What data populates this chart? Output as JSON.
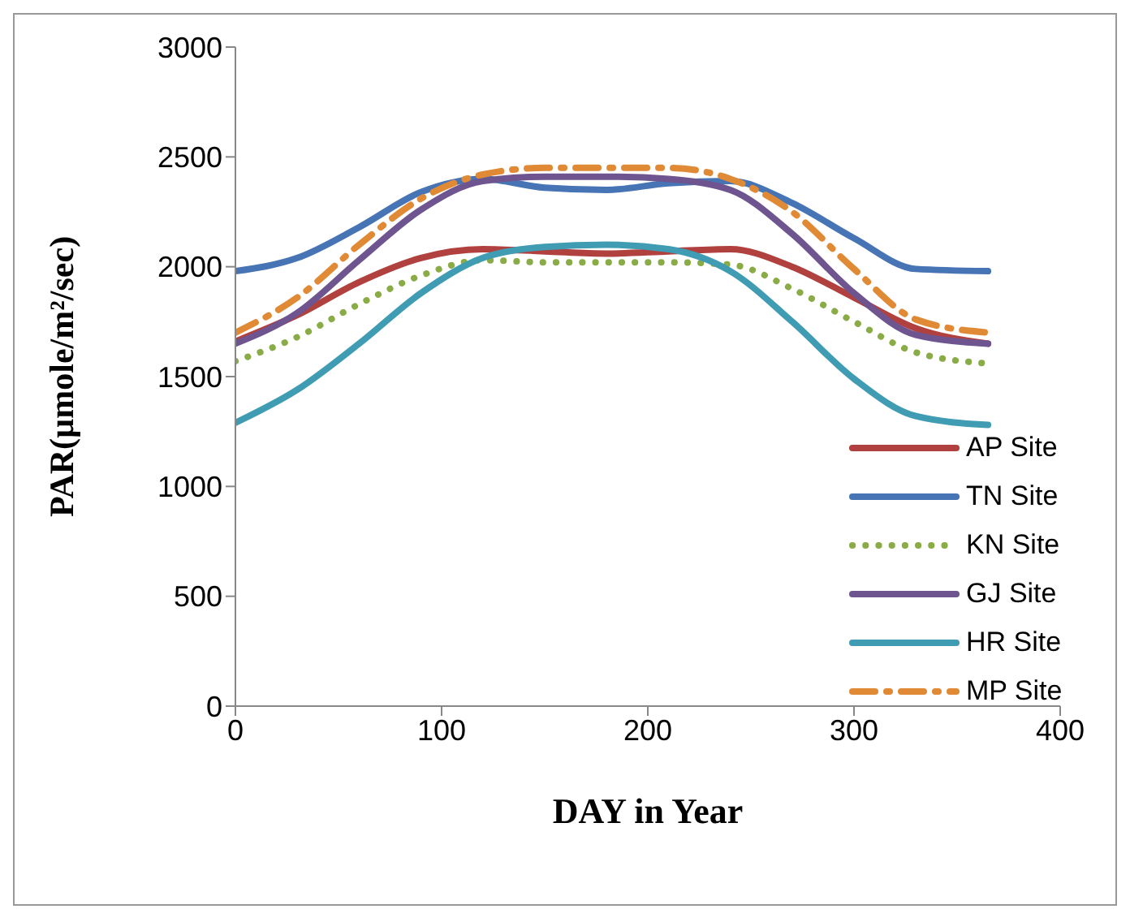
{
  "chart_data": {
    "type": "line",
    "xlabel": "DAY  in  Year",
    "ylabel": "PAR(µmole/m²/sec)",
    "x": [
      0,
      30,
      60,
      90,
      120,
      150,
      180,
      210,
      240,
      270,
      300,
      330,
      365
    ],
    "xlim": [
      0,
      400
    ],
    "xticks": [
      0,
      100,
      200,
      300,
      400
    ],
    "ylim": [
      0,
      3000
    ],
    "yticks": [
      0,
      500,
      1000,
      1500,
      2000,
      2500,
      3000
    ],
    "grid": false,
    "legend": "bottom right",
    "marker": "none",
    "series": [
      {
        "name": "AP Site",
        "color": "#b0413e",
        "line_style": "solid",
        "values": [
          1660,
          1780,
          1930,
          2040,
          2080,
          2070,
          2060,
          2070,
          2080,
          2000,
          1860,
          1720,
          1650
        ]
      },
      {
        "name": "TN Site",
        "color": "#4674b4",
        "line_style": "solid",
        "values": [
          1980,
          2040,
          2180,
          2340,
          2400,
          2360,
          2350,
          2380,
          2390,
          2290,
          2130,
          1990,
          1980
        ]
      },
      {
        "name": "KN Site",
        "color": "#8aac46",
        "line_style": "dotted",
        "values": [
          1570,
          1680,
          1830,
          1960,
          2030,
          2020,
          2020,
          2020,
          2010,
          1900,
          1750,
          1610,
          1560
        ]
      },
      {
        "name": "GJ Site",
        "color": "#6e558f",
        "line_style": "solid",
        "values": [
          1650,
          1790,
          2030,
          2260,
          2390,
          2410,
          2410,
          2400,
          2350,
          2150,
          1880,
          1690,
          1650
        ]
      },
      {
        "name": "HR Site",
        "color": "#3f9cb3",
        "line_style": "solid",
        "values": [
          1290,
          1440,
          1650,
          1880,
          2040,
          2090,
          2100,
          2080,
          1980,
          1750,
          1490,
          1320,
          1280
        ]
      },
      {
        "name": "MP Site",
        "color": "#e08a35",
        "line_style": "dashed",
        "values": [
          1700,
          1860,
          2100,
          2310,
          2420,
          2450,
          2450,
          2450,
          2400,
          2250,
          1990,
          1760,
          1700
        ]
      }
    ]
  }
}
